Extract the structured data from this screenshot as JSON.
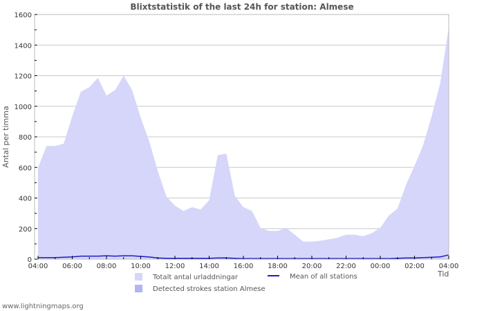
{
  "title": "Blixtstatistik of the last 24h for station: Almese",
  "credit": "www.lightningmaps.org",
  "colors": {
    "total_fill": "#d6d6fa",
    "detected_fill": "#b3b3f5",
    "mean_line": "#1a1ac8",
    "grid": "#c8c8c8",
    "axis": "#bbbbbb",
    "text": "#555555"
  },
  "legend": {
    "total": "Totalt antal urladdningar",
    "detected": "Detected strokes station Almese",
    "mean": "Mean of all stations"
  },
  "chart_data": {
    "type": "area",
    "title": "Blixtstatistik of the last 24h for station: Almese",
    "xlabel": "Tid",
    "ylabel": "Antal per timma",
    "ylim": [
      0,
      1600
    ],
    "yticks": [
      0,
      200,
      400,
      600,
      800,
      1000,
      1200,
      1400,
      1600
    ],
    "xticks": [
      "04:00",
      "06:00",
      "08:00",
      "10:00",
      "12:00",
      "14:00",
      "16:00",
      "18:00",
      "20:00",
      "22:00",
      "00:00",
      "02:00",
      "04:00"
    ],
    "grid": true,
    "legend_position": "bottom",
    "x": [
      "04:00",
      "04:30",
      "05:00",
      "05:30",
      "06:00",
      "06:30",
      "07:00",
      "07:30",
      "08:00",
      "08:30",
      "09:00",
      "09:30",
      "10:00",
      "10:30",
      "11:00",
      "11:30",
      "12:00",
      "12:30",
      "13:00",
      "13:30",
      "14:00",
      "14:30",
      "15:00",
      "15:30",
      "16:00",
      "16:30",
      "17:00",
      "17:30",
      "18:00",
      "18:30",
      "19:00",
      "19:30",
      "20:00",
      "20:30",
      "21:00",
      "21:30",
      "22:00",
      "22:30",
      "23:00",
      "23:30",
      "00:00",
      "00:30",
      "01:00",
      "01:30",
      "02:00",
      "02:30",
      "03:00",
      "03:30",
      "04:00"
    ],
    "series": [
      {
        "name": "Totalt antal urladdningar",
        "type": "area",
        "values": [
          600,
          740,
          740,
          755,
          935,
          1095,
          1125,
          1185,
          1070,
          1105,
          1200,
          1105,
          925,
          770,
          575,
          410,
          350,
          315,
          340,
          325,
          385,
          680,
          690,
          415,
          340,
          315,
          205,
          185,
          185,
          205,
          160,
          115,
          115,
          120,
          130,
          140,
          160,
          160,
          150,
          170,
          205,
          285,
          330,
          485,
          610,
          745,
          935,
          1150,
          1515
        ]
      },
      {
        "name": "Detected strokes station Almese",
        "type": "area",
        "values": [
          0,
          0,
          0,
          0,
          0,
          0,
          0,
          0,
          0,
          0,
          0,
          0,
          0,
          0,
          0,
          0,
          0,
          0,
          0,
          0,
          0,
          0,
          0,
          0,
          0,
          0,
          0,
          0,
          0,
          0,
          0,
          0,
          0,
          0,
          0,
          0,
          0,
          0,
          0,
          0,
          0,
          0,
          0,
          0,
          0,
          0,
          0,
          0,
          0
        ]
      },
      {
        "name": "Mean of all stations",
        "type": "line",
        "values": [
          10,
          10,
          10,
          12,
          15,
          20,
          20,
          20,
          22,
          20,
          22,
          22,
          18,
          14,
          8,
          6,
          6,
          6,
          6,
          6,
          6,
          8,
          8,
          6,
          4,
          4,
          4,
          4,
          4,
          4,
          4,
          4,
          4,
          4,
          4,
          4,
          4,
          4,
          4,
          4,
          4,
          4,
          6,
          8,
          8,
          10,
          12,
          15,
          28
        ]
      }
    ]
  }
}
